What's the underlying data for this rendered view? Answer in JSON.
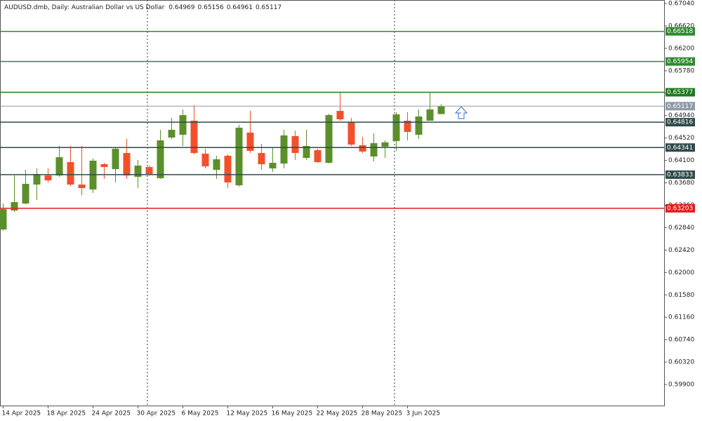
{
  "chart_data": {
    "type": "candlestick",
    "title": "AUDUSD.dmb, Daily:  Australian Dollar vs US Dollar",
    "categories": [
      "14 Apr 2025",
      null,
      null,
      null,
      "18 Apr 2025",
      null,
      null,
      null,
      "24 Apr 2025",
      null,
      null,
      null,
      "30 Apr 2025",
      null,
      null,
      null,
      "6 May 2025",
      null,
      null,
      null,
      "12 May 2025",
      null,
      null,
      null,
      "16 May 2025",
      null,
      null,
      null,
      "22 May 2025",
      null,
      null,
      null,
      "28 May 2025",
      null,
      null,
      null,
      "3 Jun 2025",
      null,
      null,
      null
    ],
    "series": [
      {
        "name": "open",
        "values": [
          0.62806,
          0.63161,
          0.63292,
          0.63648,
          0.63818,
          0.63818,
          0.64068,
          0.63648,
          0.63555,
          0.64029,
          0.63937,
          0.64239,
          0.63792,
          0.63976,
          0.63766,
          0.64529,
          0.64581,
          0.64844,
          0.64226,
          0.63924,
          0.64187,
          0.63634,
          0.64621,
          0.64239,
          0.6395,
          0.64042,
          0.64555,
          0.64147,
          0.64292,
          0.64055,
          0.65028,
          0.64818,
          0.64384,
          0.64174,
          0.64358,
          0.64463,
          0.64844,
          0.64581,
          0.64844,
          0.64969
        ]
      },
      {
        "name": "high",
        "values": [
          0.63292,
          0.63818,
          0.63924,
          0.6395,
          0.6395,
          0.64371,
          0.64371,
          0.64371,
          0.64134,
          0.64055,
          0.64344,
          0.64502,
          0.64108,
          0.64003,
          0.64673,
          0.64897,
          0.65055,
          0.65133,
          0.64318,
          0.64187,
          0.64213,
          0.64765,
          0.65028,
          0.6441,
          0.64344,
          0.64673,
          0.6466,
          0.64673,
          0.64318,
          0.64976,
          0.65383,
          0.64897,
          0.64542,
          0.64607,
          0.64476,
          0.65002,
          0.65002,
          0.65055,
          0.65383,
          0.65156
        ]
      },
      {
        "name": "low",
        "values": [
          0.6278,
          0.63135,
          0.6328,
          0.63358,
          0.63687,
          0.63792,
          0.63621,
          0.6345,
          0.6349,
          0.63753,
          0.63687,
          0.63753,
          0.63582,
          0.63818,
          0.63753,
          0.64502,
          0.64371,
          0.64213,
          0.6395,
          0.63753,
          0.63582,
          0.63608,
          0.64239,
          0.63924,
          0.63884,
          0.6395,
          0.64108,
          0.64108,
          0.64055,
          0.64042,
          0.64844,
          0.64371,
          0.64239,
          0.64081,
          0.64147,
          0.64279,
          0.64476,
          0.64502,
          0.64844,
          0.64961
        ]
      },
      {
        "name": "close",
        "values": [
          0.63187,
          0.63319,
          0.63661,
          0.63845,
          0.63726,
          0.6416,
          0.63648,
          0.63582,
          0.64095,
          0.63976,
          0.64318,
          0.63818,
          0.64003,
          0.63845,
          0.64476,
          0.64673,
          0.64949,
          0.64239,
          0.63989,
          0.64121,
          0.63687,
          0.64713,
          0.64279,
          0.64029,
          0.64055,
          0.64568,
          0.64239,
          0.64371,
          0.64068,
          0.64949,
          0.6487,
          0.64397,
          0.64266,
          0.64423,
          0.64437,
          0.64963,
          0.64634,
          0.64923,
          0.65055,
          0.65117
        ]
      }
    ],
    "up_color": "#5b8f2c",
    "down_color": "#f2502a",
    "ylim": [
      0.59506,
      0.67106
    ],
    "yticks": [
      {
        "value": 0.6704,
        "label": "0.67040"
      },
      {
        "value": 0.6662,
        "label": "0.66620"
      },
      {
        "value": 0.662,
        "label": "0.66200"
      },
      {
        "value": 0.6578,
        "label": "0.65780"
      },
      {
        "value": 0.6536,
        "label": "0.65360"
      },
      {
        "value": 0.6494,
        "label": "0.64940"
      },
      {
        "value": 0.6452,
        "label": "0.64520"
      },
      {
        "value": 0.641,
        "label": "0.64100"
      },
      {
        "value": 0.6368,
        "label": "0.63680"
      },
      {
        "value": 0.6326,
        "label": "0.63260"
      },
      {
        "value": 0.6284,
        "label": "0.62840"
      },
      {
        "value": 0.6242,
        "label": "0.62420"
      },
      {
        "value": 0.62,
        "label": "0.62000"
      },
      {
        "value": 0.6158,
        "label": "0.61580"
      },
      {
        "value": 0.6116,
        "label": "0.61160"
      },
      {
        "value": 0.6074,
        "label": "0.60740"
      },
      {
        "value": 0.6032,
        "label": "0.60320"
      },
      {
        "value": 0.599,
        "label": "0.59900"
      }
    ],
    "levels": [
      {
        "value": 0.66518,
        "color": "#2e8b2e"
      },
      {
        "value": 0.65954,
        "color": "#2e8b2e"
      },
      {
        "value": 0.65377,
        "color": "#217a21"
      },
      {
        "value": 0.65117,
        "color": "#8f9aa5"
      },
      {
        "value": 0.64816,
        "color": "#2f4a4a"
      },
      {
        "value": 0.64341,
        "color": "#2f4a4a"
      },
      {
        "value": 0.63833,
        "color": "#2f4a4a"
      },
      {
        "value": 0.63203,
        "color": "#e31b1b"
      }
    ]
  }
}
